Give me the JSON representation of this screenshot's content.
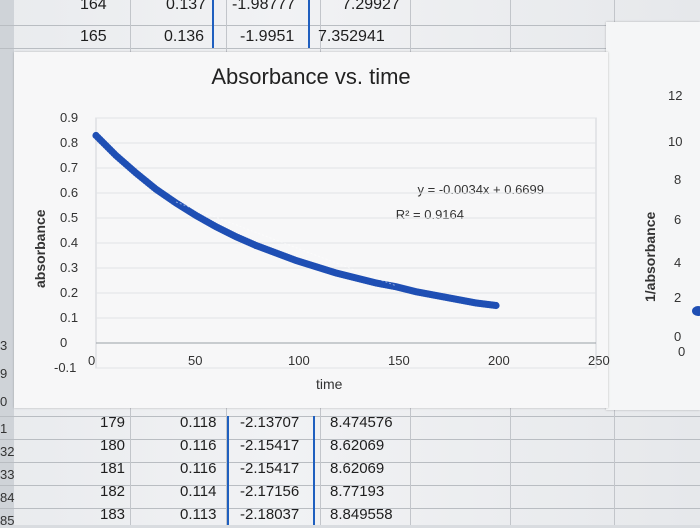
{
  "sheet": {
    "top_rows": [
      {
        "row": "164",
        "b": "0.137",
        "c": "-1.98777",
        "d": "7.29927"
      },
      {
        "row": "165",
        "b": "0.136",
        "c": "-1.9951",
        "d": "7.352941"
      }
    ],
    "bottom_rows": [
      {
        "row": "179",
        "b": "0.118",
        "c": "-2.13707",
        "d": "8.474576"
      },
      {
        "row": "180",
        "b": "0.116",
        "c": "-2.15417",
        "d": "8.62069"
      },
      {
        "row": "181",
        "b": "0.116",
        "c": "-2.15417",
        "d": "8.62069"
      },
      {
        "row": "182",
        "b": "0.114",
        "c": "-2.17156",
        "d": "8.77193"
      },
      {
        "row": "183",
        "b": "0.113",
        "c": "-2.18037",
        "d": "8.849558"
      }
    ],
    "left_row_fragments": [
      "3",
      "9",
      "0",
      "1",
      "32",
      "33",
      "84",
      "85"
    ]
  },
  "chart": {
    "title": "Absorbance vs. time",
    "ylabel": "absorbance",
    "xlabel": "time",
    "trendline": {
      "equation": "y = -0.0034x + 0.6699",
      "r2": "R² = 0.9164"
    },
    "y_ticks": [
      "0.9",
      "0.8",
      "0.7",
      "0.6",
      "0.5",
      "0.4",
      "0.3",
      "0.2",
      "0.1",
      "0",
      "-0.1"
    ],
    "x_ticks": [
      "0",
      "50",
      "100",
      "150",
      "200",
      "250"
    ]
  },
  "chart2": {
    "ylabel": "1/absorbance",
    "y_ticks": [
      "12",
      "10",
      "8",
      "6",
      "4",
      "2",
      "0"
    ],
    "x_tick": "0"
  },
  "chart_data": {
    "type": "scatter",
    "title": "Absorbance vs. time",
    "xlabel": "time",
    "ylabel": "absorbance",
    "xlim": [
      0,
      250
    ],
    "ylim": [
      -0.1,
      0.9
    ],
    "grid": true,
    "series": [
      {
        "color": "#1f4fb4",
        "x": [
          0,
          10,
          20,
          30,
          40,
          50,
          60,
          70,
          80,
          90,
          100,
          110,
          120,
          130,
          140,
          150,
          160,
          170,
          180,
          190,
          200
        ],
        "y": [
          0.83,
          0.75,
          0.68,
          0.615,
          0.56,
          0.51,
          0.465,
          0.425,
          0.39,
          0.36,
          0.33,
          0.305,
          0.28,
          0.26,
          0.24,
          0.225,
          0.205,
          0.19,
          0.175,
          0.16,
          0.15
        ]
      }
    ],
    "trendline": {
      "slope": -0.0034,
      "intercept": 0.6699,
      "r2": 0.9164
    }
  }
}
